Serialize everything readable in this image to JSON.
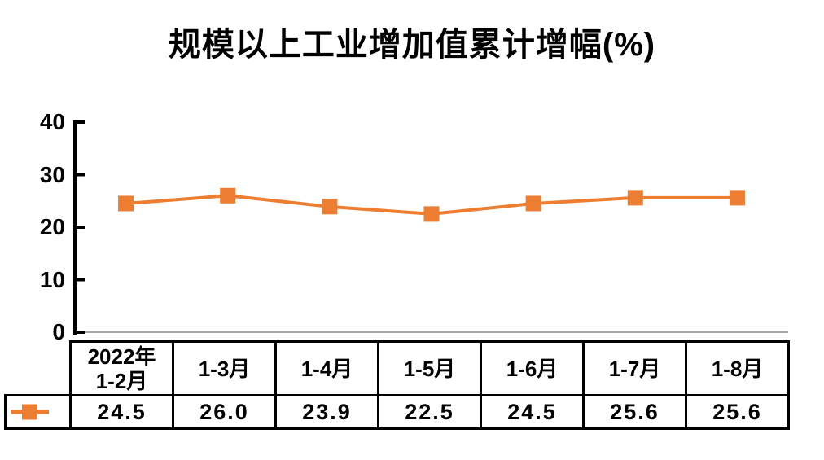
{
  "title": "规模以上工业增加值累计增幅(%)",
  "accent_color": "#ED7D31",
  "chart_data": {
    "type": "line",
    "categories": [
      "2022年\n1-2月",
      "1-3月",
      "1-4月",
      "1-5月",
      "1-6月",
      "1-7月",
      "1-8月"
    ],
    "series": [
      {
        "name": "",
        "values": [
          24.5,
          26.0,
          23.9,
          22.5,
          24.5,
          25.6,
          25.6
        ]
      }
    ],
    "title": "规模以上工业增加值累计增幅(%)",
    "xlabel": "",
    "ylabel": "",
    "ylim": [
      0,
      40
    ],
    "y_ticks": [
      "40",
      "30",
      "20",
      "10",
      "0"
    ],
    "grid": false,
    "legend_position": "table-row-left",
    "line_color": "#ED7D31",
    "marker": "square"
  },
  "table": {
    "headers": [
      "2022年\n1-2月",
      "1-3月",
      "1-4月",
      "1-5月",
      "1-6月",
      "1-7月",
      "1-8月"
    ],
    "values": [
      "24.5",
      "26.0",
      "23.9",
      "22.5",
      "24.5",
      "25.6",
      "25.6"
    ]
  }
}
